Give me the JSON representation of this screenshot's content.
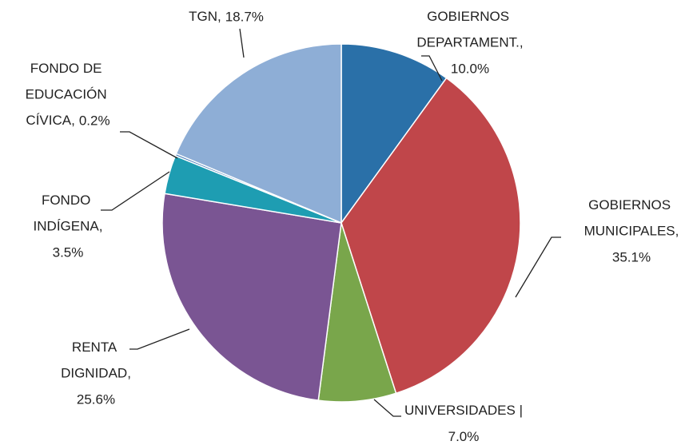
{
  "chart_data": {
    "type": "pie",
    "categories": [
      "GOBIERNOS DEPARTAMENT.,",
      "GOBIERNOS MUNICIPALES,",
      "UNIVERSIDADES |",
      "RENTA DIGNIDAD,",
      "FONDO INDÍGENA,",
      "FONDO DE EDUCACIÓN CÍVICA,",
      "TGN,"
    ],
    "values": [
      10.0,
      35.1,
      7.0,
      25.6,
      3.5,
      0.2,
      18.7
    ],
    "value_labels": [
      "10.0%",
      "35.1%",
      "7.0%",
      "25.6%",
      "3.5%",
      "0.2%",
      "18.7%"
    ],
    "colors": [
      "#2a70a8",
      "#c0464a",
      "#79a64b",
      "#7a5593",
      "#1e9db2",
      "#4a7ebb",
      "#8eaed6"
    ]
  }
}
